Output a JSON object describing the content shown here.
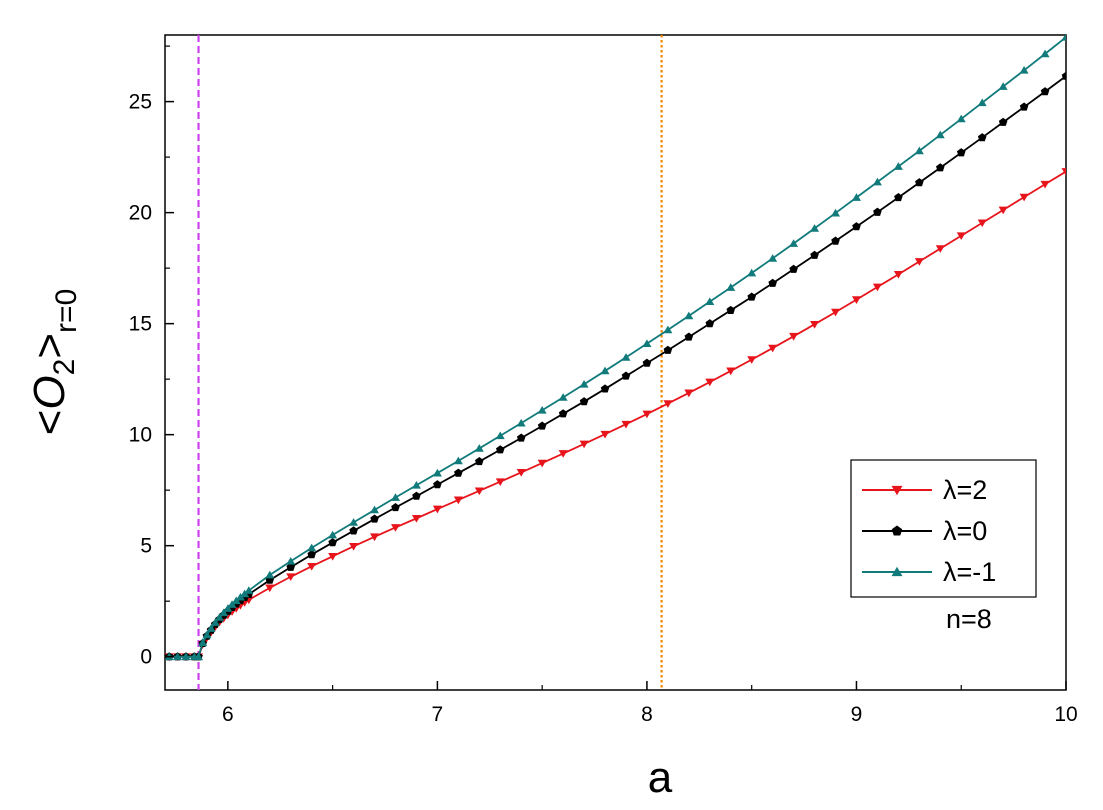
{
  "chart_data": {
    "type": "line",
    "xlabel": "a",
    "ylabel": {
      "open": "<",
      "op": "O",
      "sub": "2",
      "close": ">",
      "subscript": "r=0"
    },
    "xlim": [
      5.7,
      10.0
    ],
    "ylim": [
      -1.5,
      28.0
    ],
    "x_ticks": [
      "6",
      "7",
      "8",
      "9",
      "10"
    ],
    "y_ticks": [
      "0",
      "5",
      "10",
      "15",
      "20",
      "25"
    ],
    "x_tick_values": [
      6,
      7,
      8,
      9,
      10
    ],
    "y_tick_values": [
      0,
      5,
      10,
      15,
      20,
      25
    ],
    "grid": false,
    "legend": {
      "placement": "bottom-right",
      "note": "n=8"
    },
    "reference_lines": [
      {
        "x": 5.86,
        "color": "#cc44ee",
        "style": "dashed"
      },
      {
        "x": 8.07,
        "color": "#ee8800",
        "style": "dotted"
      }
    ],
    "series": [
      {
        "name": "λ=2",
        "color": "#e8141b",
        "marker": "triangle-down",
        "x": [
          5.72,
          5.76,
          5.8,
          5.84,
          5.86,
          5.88,
          5.9,
          5.92,
          5.94,
          5.96,
          5.98,
          6.0,
          6.02,
          6.04,
          6.06,
          6.08,
          6.1,
          6.2,
          6.3,
          6.4,
          6.5,
          6.6,
          6.7,
          6.8,
          6.9,
          7.0,
          7.1,
          7.2,
          7.3,
          7.4,
          7.5,
          7.6,
          7.7,
          7.8,
          7.9,
          8.0,
          8.1,
          8.2,
          8.3,
          8.4,
          8.5,
          8.6,
          8.7,
          8.8,
          8.9,
          9.0,
          9.1,
          9.2,
          9.3,
          9.4,
          9.5,
          9.6,
          9.7,
          9.8,
          9.9,
          10.0
        ],
        "y": [
          0,
          0,
          0,
          0,
          0,
          0.55,
          0.85,
          1.1,
          1.35,
          1.55,
          1.72,
          1.88,
          2.03,
          2.17,
          2.31,
          2.44,
          2.56,
          3.1,
          3.6,
          4.07,
          4.52,
          4.97,
          5.4,
          5.82,
          6.23,
          6.65,
          7.06,
          7.47,
          7.88,
          8.3,
          8.72,
          9.15,
          9.58,
          10.02,
          10.47,
          10.93,
          11.4,
          11.88,
          12.37,
          12.87,
          13.38,
          13.9,
          14.43,
          14.97,
          15.52,
          16.08,
          16.65,
          17.22,
          17.8,
          18.38,
          18.96,
          19.54,
          20.12,
          20.7,
          21.28,
          21.85
        ]
      },
      {
        "name": "λ=0",
        "color": "#000000",
        "marker": "pentagon",
        "x": [
          5.72,
          5.76,
          5.8,
          5.84,
          5.86,
          5.88,
          5.9,
          5.92,
          5.94,
          5.96,
          5.98,
          6.0,
          6.02,
          6.04,
          6.06,
          6.08,
          6.1,
          6.2,
          6.3,
          6.4,
          6.5,
          6.6,
          6.7,
          6.8,
          6.9,
          7.0,
          7.1,
          7.2,
          7.3,
          7.4,
          7.5,
          7.6,
          7.7,
          7.8,
          7.9,
          8.0,
          8.1,
          8.2,
          8.3,
          8.4,
          8.5,
          8.6,
          8.7,
          8.8,
          8.9,
          9.0,
          9.1,
          9.2,
          9.3,
          9.4,
          9.5,
          9.6,
          9.7,
          9.8,
          9.9,
          10.0
        ],
        "y": [
          0,
          0,
          0,
          0,
          0,
          0.6,
          0.93,
          1.2,
          1.46,
          1.68,
          1.87,
          2.05,
          2.22,
          2.38,
          2.53,
          2.67,
          2.81,
          3.45,
          4.03,
          4.6,
          5.14,
          5.67,
          6.2,
          6.72,
          7.23,
          7.75,
          8.27,
          8.79,
          9.32,
          9.85,
          10.39,
          10.94,
          11.49,
          12.06,
          12.64,
          13.22,
          13.8,
          14.4,
          15.0,
          15.6,
          16.2,
          16.82,
          17.45,
          18.08,
          18.72,
          19.37,
          20.02,
          20.68,
          21.35,
          22.02,
          22.7,
          23.38,
          24.07,
          24.76,
          25.45,
          26.15
        ]
      },
      {
        "name": "λ=-1",
        "color": "#117a7a",
        "marker": "triangle-up",
        "x": [
          5.72,
          5.76,
          5.8,
          5.84,
          5.86,
          5.88,
          5.9,
          5.92,
          5.94,
          5.96,
          5.98,
          6.0,
          6.02,
          6.04,
          6.06,
          6.08,
          6.1,
          6.2,
          6.3,
          6.4,
          6.5,
          6.6,
          6.7,
          6.8,
          6.9,
          7.0,
          7.1,
          7.2,
          7.3,
          7.4,
          7.5,
          7.6,
          7.7,
          7.8,
          7.9,
          8.0,
          8.1,
          8.2,
          8.3,
          8.4,
          8.5,
          8.6,
          8.7,
          8.8,
          8.9,
          9.0,
          9.1,
          9.2,
          9.3,
          9.4,
          9.5,
          9.6,
          9.7,
          9.8,
          9.9,
          10.0
        ],
        "y": [
          0,
          0,
          0,
          0,
          0,
          0.63,
          0.98,
          1.27,
          1.54,
          1.77,
          1.98,
          2.17,
          2.35,
          2.52,
          2.68,
          2.83,
          2.98,
          3.68,
          4.3,
          4.9,
          5.48,
          6.05,
          6.61,
          7.17,
          7.72,
          8.27,
          8.82,
          9.38,
          9.95,
          10.52,
          11.1,
          11.68,
          12.27,
          12.87,
          13.48,
          14.1,
          14.72,
          15.35,
          15.99,
          16.63,
          17.28,
          17.94,
          18.61,
          19.29,
          19.98,
          20.68,
          21.38,
          22.08,
          22.78,
          23.5,
          24.22,
          24.95,
          25.68,
          26.41,
          27.15,
          27.9
        ]
      }
    ]
  }
}
